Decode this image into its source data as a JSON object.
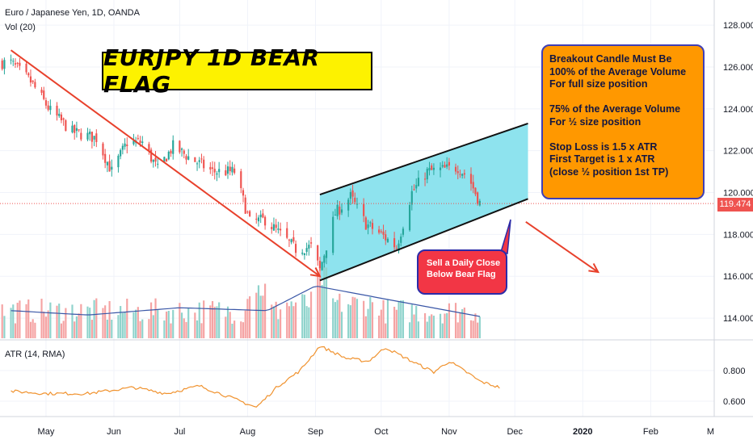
{
  "header": {
    "symbol_line": "Euro / Japanese Yen, 1D, OANDA",
    "volume_line": "Vol (20)",
    "atr_line": "ATR (14, RMA)"
  },
  "banner": {
    "text": "EURJPY 1D BEAR FLAG"
  },
  "note_box": {
    "lines": [
      "Breakout Candle Must Be",
      "100% of the Average Volume",
      "For full size position",
      "",
      "75% of the Average Volume",
      "For ½ size position",
      "",
      "Stop Loss is 1.5 x ATR",
      "First Target is 1 x ATR",
      "(close ½ position 1st TP)"
    ]
  },
  "sell_box": {
    "lines": [
      "Sell a Daily Close",
      "Below Bear Flag"
    ]
  },
  "current_price_label": "119.474",
  "colors": {
    "up": "#26a69a",
    "down": "#ef5350",
    "vol_up": "#8fd3cc",
    "vol_down": "#f5a3a3",
    "channel_fill": "#8ee3ee",
    "arrow": "#e8412c",
    "ma_line": "#3a57a7",
    "atr_line": "#f0922e",
    "grid": "#f0f3fa",
    "axis_text": "#131722"
  },
  "chart_data": [
    {
      "type": "candlestick",
      "symbol": "Euro / Japanese Yen, 1D, OANDA",
      "y_axis_ticks": [
        "114.000",
        "116.000",
        "118.000",
        "120.000",
        "122.000",
        "124.000",
        "126.000",
        "128.000"
      ],
      "ylim": [
        113,
        129.2
      ],
      "x_axis_ticks": [
        "May",
        "Jun",
        "Jul",
        "Aug",
        "Sep",
        "Oct",
        "Nov",
        "Dec",
        "2020",
        "Feb",
        "M"
      ],
      "x_range": [
        "2019-04-10",
        "2020-03-01"
      ],
      "close_waypoints": [
        {
          "date": "2019-04-15",
          "close": 126.2
        },
        {
          "date": "2019-04-24",
          "close": 125.3
        },
        {
          "date": "2019-05-03",
          "close": 123.9
        },
        {
          "date": "2019-05-13",
          "close": 122.9
        },
        {
          "date": "2019-05-24",
          "close": 122.6
        },
        {
          "date": "2019-05-31",
          "close": 121.0
        },
        {
          "date": "2019-06-07",
          "close": 122.4
        },
        {
          "date": "2019-06-14",
          "close": 122.4
        },
        {
          "date": "2019-06-21",
          "close": 121.1
        },
        {
          "date": "2019-06-28",
          "close": 122.2
        },
        {
          "date": "2019-07-05",
          "close": 121.7
        },
        {
          "date": "2019-07-16",
          "close": 121.0
        },
        {
          "date": "2019-07-26",
          "close": 121.0
        },
        {
          "date": "2019-08-02",
          "close": 118.6
        },
        {
          "date": "2019-08-09",
          "close": 118.7
        },
        {
          "date": "2019-08-16",
          "close": 118.0
        },
        {
          "date": "2019-08-23",
          "close": 117.3
        },
        {
          "date": "2019-08-30",
          "close": 117.4
        },
        {
          "date": "2019-09-03",
          "close": 116.3
        },
        {
          "date": "2019-09-10",
          "close": 119.0
        },
        {
          "date": "2019-09-17",
          "close": 119.8
        },
        {
          "date": "2019-09-24",
          "close": 118.5
        },
        {
          "date": "2019-10-01",
          "close": 118.0
        },
        {
          "date": "2019-10-08",
          "close": 117.4
        },
        {
          "date": "2019-10-15",
          "close": 120.0
        },
        {
          "date": "2019-10-22",
          "close": 121.0
        },
        {
          "date": "2019-10-29",
          "close": 121.1
        },
        {
          "date": "2019-11-05",
          "close": 121.2
        },
        {
          "date": "2019-11-10",
          "close": 120.7
        },
        {
          "date": "2019-11-15",
          "close": 119.5
        }
      ],
      "last_price": 119.474,
      "annotations": {
        "downtrend_line": {
          "from": {
            "date": "2019-04-15",
            "price": 126.8
          },
          "to": {
            "date": "2019-09-03",
            "price": 116.0
          }
        },
        "flag_channel_lower": {
          "from": {
            "date": "2019-09-03",
            "price": 115.8
          },
          "to": {
            "date": "2019-12-07",
            "price": 119.7
          }
        },
        "flag_channel_upper": {
          "from": {
            "date": "2019-09-03",
            "price": 119.9
          },
          "to": {
            "date": "2019-12-07",
            "price": 123.3
          }
        },
        "projection_arrow": {
          "from": {
            "date": "2019-12-06",
            "price": 118.6
          },
          "to": {
            "date": "2020-01-08",
            "price": 116.2
          }
        }
      }
    },
    {
      "type": "bar",
      "name": "Vol (20)",
      "values_relative": "random-walk pattern; spikes near 2019-08-05 and 2019-09-03",
      "ma_waypoints": [
        {
          "date": "2019-04-15",
          "value": 0.38
        },
        {
          "date": "2019-05-20",
          "value": 0.32
        },
        {
          "date": "2019-07-01",
          "value": 0.42
        },
        {
          "date": "2019-08-10",
          "value": 0.38
        },
        {
          "date": "2019-09-01",
          "value": 0.72
        },
        {
          "date": "2019-10-01",
          "value": 0.55
        },
        {
          "date": "2019-11-15",
          "value": 0.3
        }
      ]
    },
    {
      "type": "line",
      "name": "ATR (14, RMA)",
      "y_axis_ticks": [
        "0.600",
        "0.800"
      ],
      "ylim": [
        0.5,
        1.0
      ],
      "points": [
        {
          "date": "2019-04-15",
          "value": 0.665
        },
        {
          "date": "2019-05-01",
          "value": 0.65
        },
        {
          "date": "2019-05-20",
          "value": 0.65
        },
        {
          "date": "2019-06-10",
          "value": 0.69
        },
        {
          "date": "2019-06-25",
          "value": 0.65
        },
        {
          "date": "2019-07-10",
          "value": 0.7
        },
        {
          "date": "2019-07-25",
          "value": 0.62
        },
        {
          "date": "2019-08-05",
          "value": 0.56
        },
        {
          "date": "2019-08-15",
          "value": 0.7
        },
        {
          "date": "2019-08-25",
          "value": 0.8
        },
        {
          "date": "2019-09-03",
          "value": 0.96
        },
        {
          "date": "2019-09-15",
          "value": 0.88
        },
        {
          "date": "2019-09-25",
          "value": 0.86
        },
        {
          "date": "2019-10-03",
          "value": 0.95
        },
        {
          "date": "2019-10-15",
          "value": 0.86
        },
        {
          "date": "2019-10-25",
          "value": 0.79
        },
        {
          "date": "2019-11-01",
          "value": 0.86
        },
        {
          "date": "2019-11-10",
          "value": 0.78
        },
        {
          "date": "2019-11-15",
          "value": 0.73
        },
        {
          "date": "2019-11-24",
          "value": 0.69
        }
      ]
    }
  ]
}
